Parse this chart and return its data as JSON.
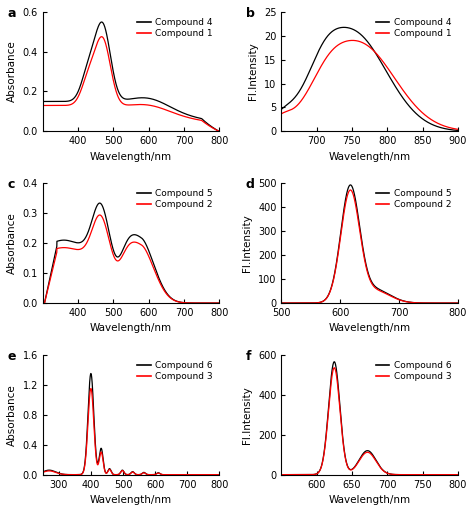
{
  "panels": [
    {
      "label": "a",
      "xlabel": "Wavelength/nm",
      "ylabel": "Absorbance",
      "xlim": [
        300,
        800
      ],
      "ylim": [
        0,
        0.6
      ],
      "yticks": [
        0.0,
        0.2,
        0.4,
        0.6
      ],
      "xticks": [
        400,
        500,
        600,
        700,
        800
      ],
      "legend": [
        "Compound 4",
        "Compound 1"
      ],
      "curve_colors": [
        "black",
        "red"
      ]
    },
    {
      "label": "b",
      "xlabel": "Wavelength/nm",
      "ylabel": "FI.Intensity",
      "xlim": [
        650,
        900
      ],
      "ylim": [
        0,
        25
      ],
      "yticks": [
        0,
        5,
        10,
        15,
        20,
        25
      ],
      "xticks": [
        700,
        750,
        800,
        850,
        900
      ],
      "legend": [
        "Compound 4",
        "Compound 1"
      ],
      "curve_colors": [
        "black",
        "red"
      ]
    },
    {
      "label": "c",
      "xlabel": "Wavelength/nm",
      "ylabel": "Absorbance",
      "xlim": [
        300,
        800
      ],
      "ylim": [
        0,
        0.4
      ],
      "yticks": [
        0.0,
        0.1,
        0.2,
        0.3,
        0.4
      ],
      "xticks": [
        400,
        500,
        600,
        700,
        800
      ],
      "legend": [
        "Compound 5",
        "Compound 2"
      ],
      "curve_colors": [
        "black",
        "red"
      ]
    },
    {
      "label": "d",
      "xlabel": "Wavelength/nm",
      "ylabel": "FI.Intensity",
      "xlim": [
        500,
        800
      ],
      "ylim": [
        0,
        500
      ],
      "yticks": [
        0,
        100,
        200,
        300,
        400,
        500
      ],
      "xticks": [
        500,
        600,
        700,
        800
      ],
      "legend": [
        "Compound 5",
        "Compound 2"
      ],
      "curve_colors": [
        "black",
        "red"
      ]
    },
    {
      "label": "e",
      "xlabel": "Wavelength/nm",
      "ylabel": "Absorbance",
      "xlim": [
        250,
        800
      ],
      "ylim": [
        0,
        1.6
      ],
      "yticks": [
        0.0,
        0.4,
        0.8,
        1.2,
        1.6
      ],
      "xticks": [
        300,
        400,
        500,
        600,
        700,
        800
      ],
      "legend": [
        "Compound 6",
        "Compound 3"
      ],
      "curve_colors": [
        "black",
        "red"
      ]
    },
    {
      "label": "f",
      "xlabel": "Wavelength/nm",
      "ylabel": "FI.Intensity",
      "xlim": [
        550,
        800
      ],
      "ylim": [
        0,
        600
      ],
      "yticks": [
        0,
        200,
        400,
        600
      ],
      "xticks": [
        600,
        650,
        700,
        750,
        800
      ],
      "legend": [
        "Compound 6",
        "Compound 3"
      ],
      "curve_colors": [
        "black",
        "red"
      ]
    }
  ]
}
